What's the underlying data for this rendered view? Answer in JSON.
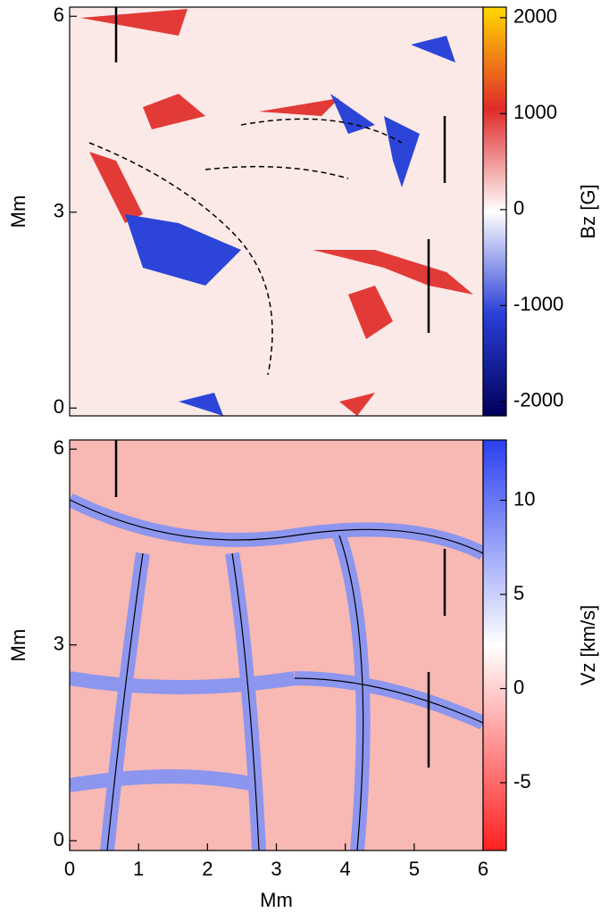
{
  "chart_data": [
    {
      "type": "heatmap",
      "ylabel": "Mm",
      "xlim": [
        0,
        6
      ],
      "ylim": [
        -0.12,
        6.14
      ],
      "yticks": [
        0,
        3,
        6
      ],
      "colorbar_label": "Bz [G]",
      "colorbar_lim": [
        -2150,
        2110
      ],
      "colorbar_ticks": [
        -2000,
        -1000,
        0,
        1000,
        2000
      ],
      "colormap": [
        "#00005a",
        "#2b3fd8",
        "#ffffff",
        "#e02a2a",
        "#ffd800"
      ]
    },
    {
      "type": "heatmap",
      "xlabel": "Mm",
      "ylabel": "Mm",
      "xlim": [
        0,
        6
      ],
      "xticks": [
        0,
        1,
        2,
        3,
        4,
        5,
        6
      ],
      "ylim": [
        -0.15,
        6.14
      ],
      "yticks": [
        0,
        3,
        6
      ],
      "colorbar_label": "Vz [km/s]",
      "colorbar_lim": [
        -8.6,
        13.2
      ],
      "colorbar_ticks": [
        -5,
        0,
        5,
        10
      ],
      "colormap": [
        "#ff2020",
        "#ffffff",
        "#2a3ff0"
      ]
    }
  ]
}
